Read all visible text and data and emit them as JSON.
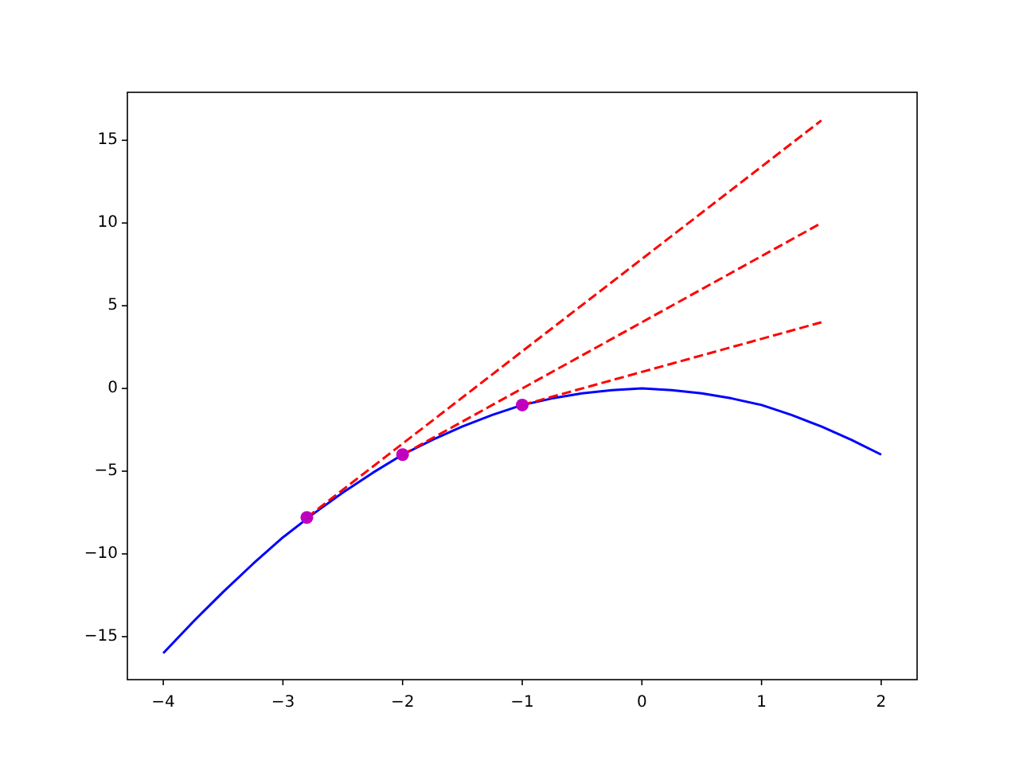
{
  "chart_data": {
    "type": "line",
    "xlim": [
      -4.3,
      2.3
    ],
    "ylim": [
      -17.6,
      17.9
    ],
    "xticks": [
      {
        "value": -4,
        "label": "−4"
      },
      {
        "value": -3,
        "label": "−3"
      },
      {
        "value": -2,
        "label": "−2"
      },
      {
        "value": -1,
        "label": "−1"
      },
      0,
      1,
      2
    ],
    "yticks": [
      {
        "value": -15,
        "label": "−15"
      },
      {
        "value": -10,
        "label": "−10"
      },
      {
        "value": -5,
        "label": "−5"
      },
      0,
      5,
      10,
      15
    ],
    "grid": false,
    "series": [
      {
        "color": "#0000ff",
        "line_style": "solid",
        "marker": "none",
        "x": [
          -4,
          -3.75,
          -3.5,
          -3.25,
          -3,
          -2.75,
          -2.5,
          -2.25,
          -2,
          -1.75,
          -1.5,
          -1.25,
          -1,
          -0.75,
          -0.5,
          -0.25,
          0,
          0.25,
          0.5,
          0.75,
          1,
          1.25,
          1.5,
          1.75,
          2
        ],
        "values": [
          -16,
          -14.1,
          -12.3,
          -10.6,
          -9,
          -7.6,
          -6.3,
          -5.1,
          -4,
          -3.1,
          -2.3,
          -1.6,
          -1,
          -0.6,
          -0.3,
          -0.1,
          0,
          -0.1,
          -0.3,
          -0.6,
          -1,
          -1.6,
          -2.3,
          -3.1,
          -4
        ]
      },
      {
        "color": "#ff0000",
        "line_style": "dashed",
        "marker": "none",
        "x": [
          -1,
          1.5
        ],
        "values": [
          -1,
          4
        ]
      },
      {
        "color": "#ff0000",
        "line_style": "dashed",
        "marker": "none",
        "x": [
          -2,
          1.5
        ],
        "values": [
          -4,
          10
        ]
      },
      {
        "color": "#ff0000",
        "line_style": "dashed",
        "marker": "none",
        "x": [
          -2.8,
          1.5
        ],
        "values": [
          -7.8,
          16.2
        ]
      },
      {
        "type": "scatter",
        "color": "#bf00bf",
        "marker": "circle",
        "x": [
          -2.8,
          -2,
          -1
        ],
        "values": [
          -7.8,
          -4,
          -1
        ]
      }
    ]
  }
}
